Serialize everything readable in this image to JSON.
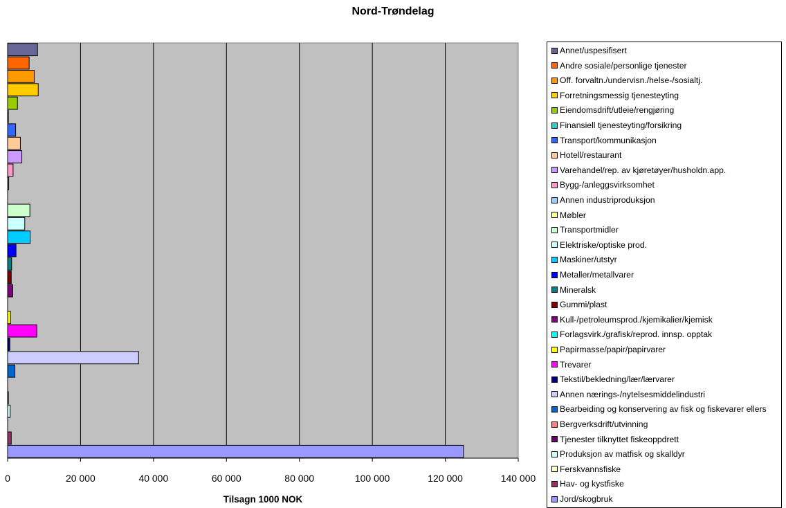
{
  "chart_data": {
    "type": "bar",
    "orientation": "horizontal",
    "title": "Nord-Trøndelag",
    "xlabel": "Tilsagn 1000 NOK",
    "ylabel": "",
    "xlim": [
      0,
      140000
    ],
    "xticks": [
      0,
      20000,
      40000,
      60000,
      80000,
      100000,
      120000,
      140000
    ],
    "xtick_labels": [
      "0",
      "20 000",
      "40 000",
      "60 000",
      "80 000",
      "100 000",
      "120 000",
      "140 000"
    ],
    "grid": "vertical",
    "plot_background": "#c0c0c0",
    "legend_position": "right",
    "categories": [
      "Annet/uspesifisert",
      "Andre sosiale/personlige tjenester",
      "Off. forvaltn./undervisn./helse-/sosialtj.",
      "Forretningsmessig tjenesteyting",
      "Eiendomsdrift/utleie/rengjøring",
      "Finansiell tjenesteyting/forsikring",
      "Transport/kommunikasjon",
      "Hotell/restaurant",
      "Varehandel/rep. av kjøretøyer/husholdn.app.",
      "Bygg-/anleggsvirksomhet",
      "Annen industriproduksjon",
      "Møbler",
      "Transportmidler",
      "Elektriske/optiske prod.",
      "Maskiner/utstyr",
      "Metaller/metallvarer",
      "Mineralsk",
      "Gummi/plast",
      " Kull-/petroleumsprod./kjemikalier/kjemisk",
      "Forlagsvirk./grafisk/reprod. innsp. opptak",
      "Papirmasse/papir/papirvarer",
      "Trevarer",
      "Tekstil/bekledning/lær/lærvarer",
      " Annen nærings-/nytelsesmiddelindustri",
      "Bearbeiding og konservering av fisk og fiskevarer ellers",
      "Bergverksdrift/utvinning",
      "Tjenester tilknyttet fiskeoppdrett",
      "Produksjon av matfisk og skalldyr",
      "Ferskvannsfiske",
      "Hav- og kystfiske",
      "Jord/skogbruk"
    ],
    "values": [
      8200,
      5900,
      7300,
      8400,
      2700,
      200,
      2200,
      3500,
      3900,
      1500,
      300,
      0,
      6100,
      4700,
      6200,
      2300,
      1100,
      1000,
      1400,
      0,
      800,
      8000,
      600,
      35900,
      2000,
      0,
      200,
      700,
      0,
      1000,
      125000
    ],
    "colors": [
      "#666699",
      "#ff6600",
      "#ff9900",
      "#ffcc00",
      "#99cc00",
      "#33cccc",
      "#3366ff",
      "#ffcc99",
      "#cc99ff",
      "#ff99cc",
      "#99ccff",
      "#ffff99",
      "#ccffcc",
      "#ccffff",
      "#00ccff",
      "#0000ff",
      "#008080",
      "#800000",
      "#800080",
      "#00ffff",
      "#ffff00",
      "#ff00ff",
      "#000080",
      "#ccccff",
      "#0066cc",
      "#ff8080",
      "#660066",
      "#ccffff",
      "#ffffcc",
      "#993366",
      "#9999ff"
    ]
  }
}
